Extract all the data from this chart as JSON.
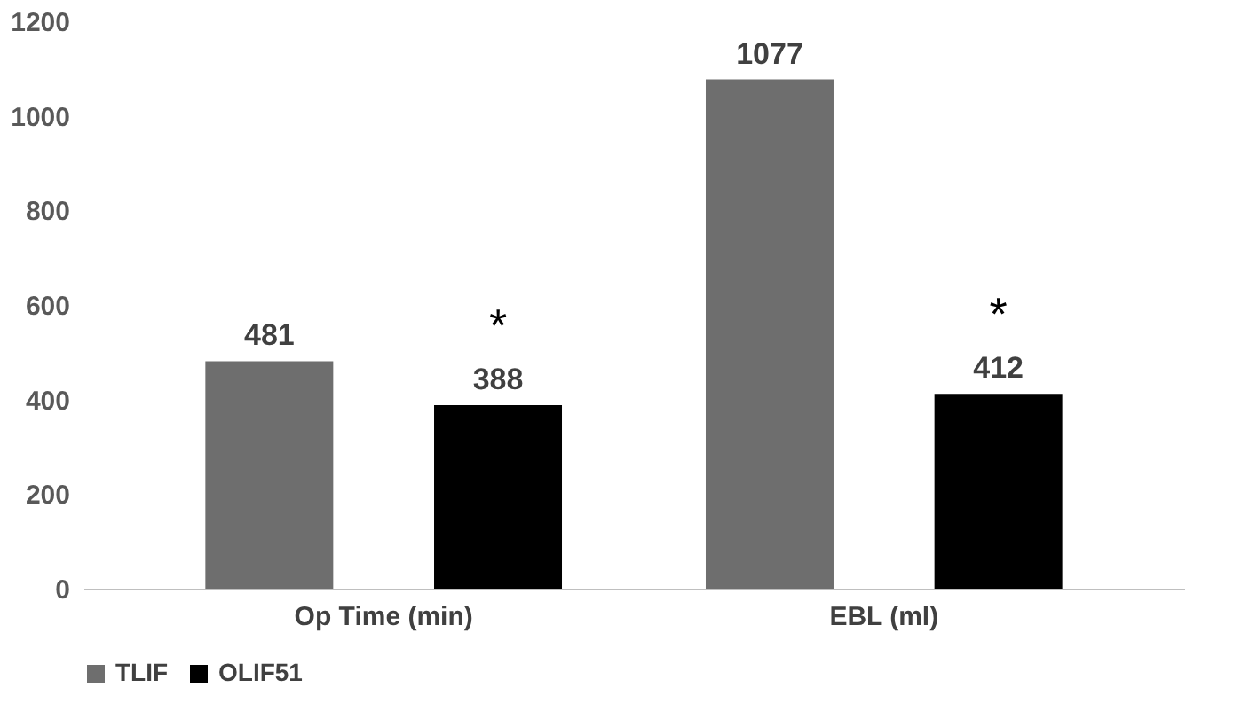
{
  "chart_data": {
    "type": "bar",
    "categories": [
      "Op Time (min)",
      "EBL (ml)"
    ],
    "series": [
      {
        "name": "TLIF",
        "color": "#6e6e6e",
        "values": [
          481,
          1077
        ]
      },
      {
        "name": "OLIF51",
        "color": "#000000",
        "values": [
          388,
          412
        ]
      }
    ],
    "ylim": [
      0,
      1200
    ],
    "yticks": [
      0,
      200,
      400,
      600,
      800,
      1000,
      1200
    ],
    "grid": false,
    "legend": "bottom",
    "data_labels": true,
    "annotations": [
      "*",
      "*"
    ]
  }
}
